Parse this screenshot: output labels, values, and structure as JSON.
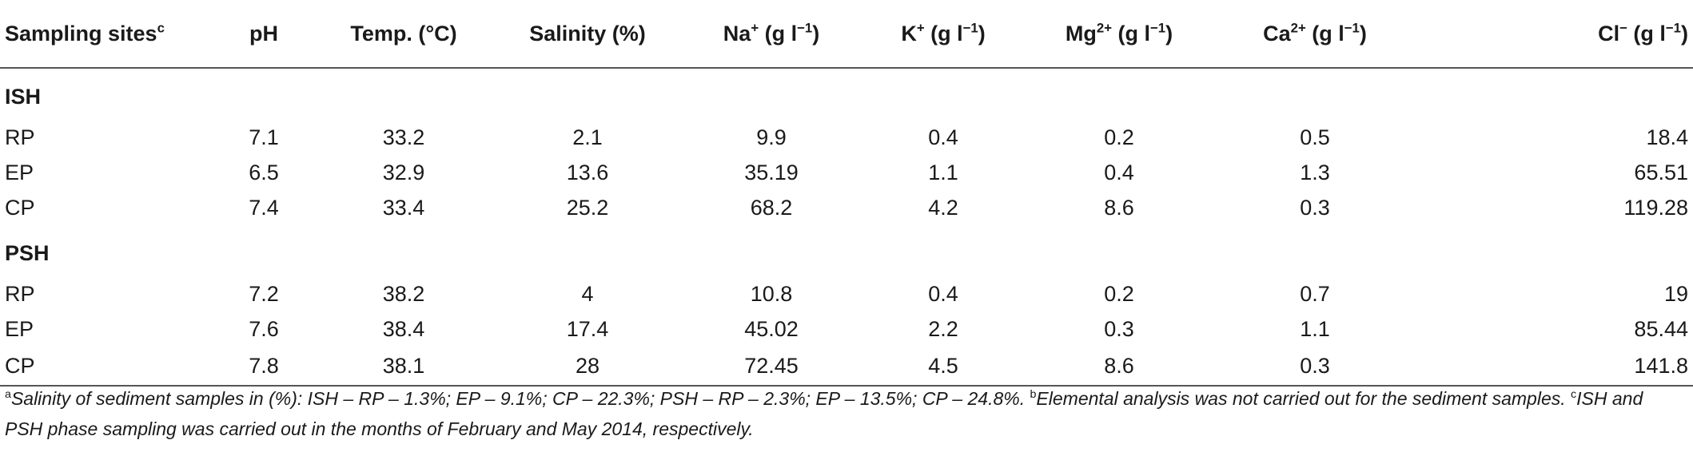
{
  "headers": [
    {
      "base": "Sampling sites",
      "sup": "c",
      "unit": ""
    },
    {
      "base": "pH",
      "sup": "",
      "unit": ""
    },
    {
      "base": "Temp. (°C)",
      "sup": "",
      "unit": ""
    },
    {
      "base": "Salinity (%)",
      "sup": "",
      "unit": ""
    },
    {
      "base": "Na",
      "sup": "+",
      "unit": " (g l",
      "unit_sup": "−1",
      "unit_end": ")"
    },
    {
      "base": "K",
      "sup": "+",
      "unit": " (g l",
      "unit_sup": "−1",
      "unit_end": ")"
    },
    {
      "base": "Mg",
      "sup": "2+",
      "unit": " (g l",
      "unit_sup": "−1",
      "unit_end": ")"
    },
    {
      "base": "Ca",
      "sup": "2+",
      "unit": " (g l",
      "unit_sup": "−1",
      "unit_end": ")"
    },
    {
      "base": "Cl",
      "sup": "−",
      "unit": " (g l",
      "unit_sup": "−1",
      "unit_end": ")"
    }
  ],
  "sections": [
    {
      "label": "ISH",
      "rows": [
        [
          "RP",
          "7.1",
          "33.2",
          "2.1",
          "9.9",
          "0.4",
          "0.2",
          "0.5",
          "18.4"
        ],
        [
          "EP",
          "6.5",
          "32.9",
          "13.6",
          "35.19",
          "1.1",
          "0.4",
          "1.3",
          "65.51"
        ],
        [
          "CP",
          "7.4",
          "33.4",
          "25.2",
          "68.2",
          "4.2",
          "8.6",
          "0.3",
          "119.28"
        ]
      ]
    },
    {
      "label": "PSH",
      "rows": [
        [
          "RP",
          "7.2",
          "38.2",
          "4",
          "10.8",
          "0.4",
          "0.2",
          "0.7",
          "19"
        ],
        [
          "EP",
          "7.6",
          "38.4",
          "17.4",
          "45.02",
          "2.2",
          "0.3",
          "1.1",
          "85.44"
        ],
        [
          "CP",
          "7.8",
          "38.1",
          "28",
          "72.45",
          "4.5",
          "8.6",
          "0.3",
          "141.8"
        ]
      ]
    }
  ],
  "footnotes": [
    {
      "mark": "a",
      "text": "Salinity of sediment samples in (%): ISH – RP – 1.3%; EP – 9.1%; CP – 22.3%; PSH – RP – 2.3%; EP – 13.5%; CP – 24.8%."
    },
    {
      "mark": "b",
      "text": "Elemental analysis was not carried out for the sediment samples."
    },
    {
      "mark": "c",
      "text": "ISH and PSH phase sampling was carried out in the months of February and May 2014, respectively."
    }
  ]
}
